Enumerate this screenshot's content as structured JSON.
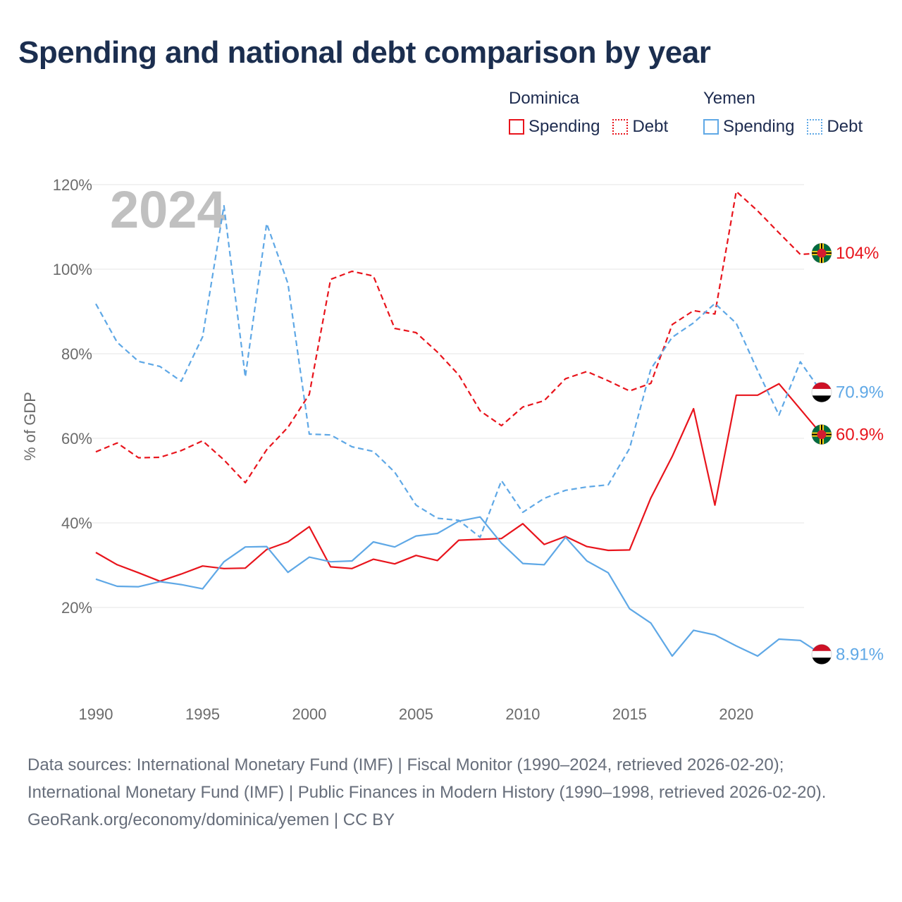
{
  "title": "Spending and national debt comparison by year",
  "legend": {
    "groups": [
      {
        "name": "Dominica",
        "spending_label": "Spending",
        "debt_label": "Debt"
      },
      {
        "name": "Yemen",
        "spending_label": "Spending",
        "debt_label": "Debt"
      }
    ]
  },
  "source": {
    "text": "Data sources: International Monetary Fund (IMF) | Fiscal Monitor (1990–2024, retrieved 2026-02-20); International Monetary Fund (IMF) | Public Finances in Modern History (1990–1998, retrieved 2026-02-20).",
    "credit": "GeoRank.org/economy/dominica/yemen | CC BY"
  },
  "colors": {
    "dominica": "#e8141c",
    "yemen": "#5fa8e6",
    "grid": "#e6e6e6",
    "tick": "#6b6b6b",
    "watermark": "#c0c0c0"
  },
  "chart_data": {
    "type": "line",
    "watermark_year": "2024",
    "ylabel": "% of GDP",
    "ylim": [
      0,
      125
    ],
    "xlim": [
      1990,
      2024
    ],
    "y_ticks": [
      20,
      40,
      60,
      80,
      100,
      120
    ],
    "y_tick_labels": [
      "20%",
      "40%",
      "60%",
      "80%",
      "100%",
      "120%"
    ],
    "x_ticks": [
      1990,
      1995,
      2000,
      2005,
      2010,
      2015,
      2020
    ],
    "x_tick_labels": [
      "1990",
      "1995",
      "2000",
      "2005",
      "2010",
      "2015",
      "2020"
    ],
    "x": [
      1990,
      1991,
      1992,
      1993,
      1994,
      1995,
      1996,
      1997,
      1998,
      1999,
      2000,
      2001,
      2002,
      2003,
      2004,
      2005,
      2006,
      2007,
      2008,
      2009,
      2010,
      2011,
      2012,
      2013,
      2014,
      2015,
      2016,
      2017,
      2018,
      2019,
      2020,
      2021,
      2022,
      2023,
      2024
    ],
    "series": [
      {
        "name": "Dominica Debt",
        "country": "dominica",
        "style": "dashed",
        "end_label": "104%",
        "values": [
          56.8,
          58.9,
          55.4,
          55.5,
          57.1,
          59.4,
          54.9,
          49.5,
          57.3,
          62.6,
          70.4,
          97.6,
          99.5,
          98.4,
          86.0,
          85.0,
          80.4,
          75.0,
          66.5,
          63.0,
          67.4,
          68.9,
          74.1,
          75.8,
          73.6,
          71.2,
          73.0,
          86.9,
          90.2,
          89.4,
          118.4,
          113.8,
          108.6,
          103.5,
          103.8
        ]
      },
      {
        "name": "Dominica Spending",
        "country": "dominica",
        "style": "solid",
        "end_label": "60.9%",
        "values": [
          33.0,
          30.1,
          28.2,
          26.2,
          27.9,
          29.8,
          29.2,
          29.3,
          33.7,
          35.5,
          39.1,
          29.6,
          29.2,
          31.4,
          30.3,
          32.3,
          31.1,
          35.9,
          36.1,
          36.3,
          39.8,
          34.9,
          36.8,
          34.4,
          33.5,
          33.6,
          45.9,
          55.7,
          67.0,
          44.2,
          70.2,
          70.2,
          72.9,
          66.9,
          60.9
        ]
      },
      {
        "name": "Yemen Debt",
        "country": "yemen",
        "style": "dashed",
        "end_label": "70.9%",
        "values": [
          91.8,
          82.7,
          78.2,
          77.0,
          73.5,
          84.0,
          115.0,
          74.5,
          110.8,
          96.6,
          61.0,
          60.8,
          58.0,
          56.9,
          52.0,
          44.2,
          41.1,
          40.6,
          36.6,
          50.0,
          42.5,
          45.8,
          47.7,
          48.5,
          49.0,
          57.6,
          76.4,
          83.9,
          87.3,
          91.9,
          87.2,
          76.0,
          65.5,
          78.1,
          70.9
        ]
      },
      {
        "name": "Yemen Spending",
        "country": "yemen",
        "style": "solid",
        "end_label": "8.91%",
        "values": [
          26.7,
          25.0,
          24.9,
          26.1,
          25.4,
          24.4,
          30.8,
          34.3,
          34.4,
          28.3,
          31.9,
          30.8,
          31.0,
          35.5,
          34.3,
          36.9,
          37.5,
          40.4,
          41.4,
          35.2,
          30.4,
          30.1,
          36.6,
          31.0,
          28.2,
          19.7,
          16.3,
          8.5,
          14.6,
          13.5,
          10.9,
          8.5,
          12.5,
          12.2,
          8.91
        ]
      }
    ]
  }
}
